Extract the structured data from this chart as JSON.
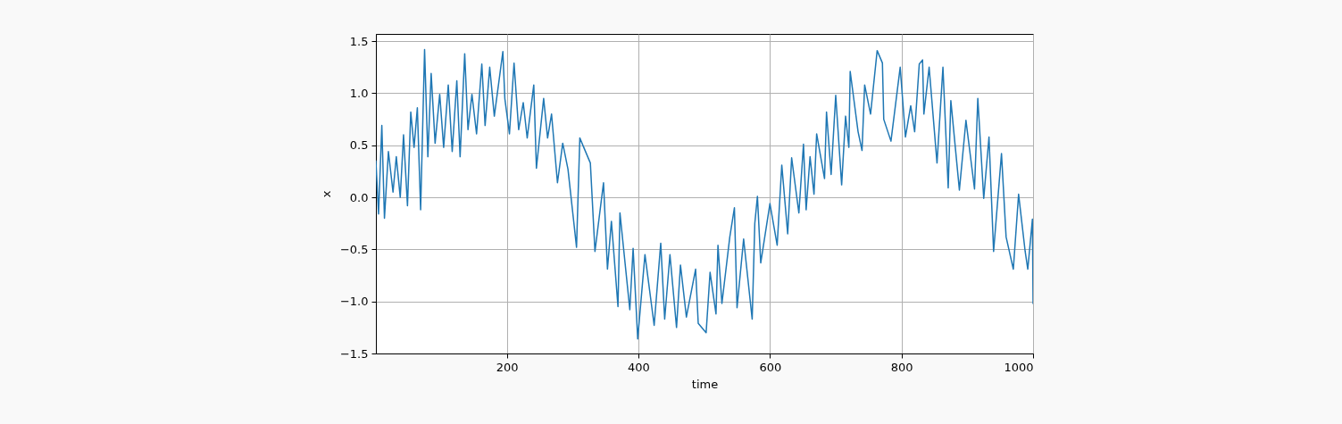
{
  "chart_data": {
    "type": "line",
    "xlabel": "time",
    "ylabel": "x",
    "xlim": [
      1,
      1000
    ],
    "ylim": [
      -1.5,
      1.57
    ],
    "xticks": [
      200,
      400,
      600,
      800,
      1000
    ],
    "yticks": [
      {
        "value": -1.5,
        "label": "−1.5"
      },
      {
        "value": -1,
        "label": "−1.0"
      },
      {
        "value": -0.5,
        "label": "−0.5"
      },
      {
        "value": 0,
        "label": "0.0"
      },
      {
        "value": 0.5,
        "label": "0.5"
      },
      {
        "value": 1,
        "label": "1.0"
      },
      {
        "value": 1.5,
        "label": "1.5"
      }
    ],
    "grid": true,
    "marker": "none",
    "line_style": "solid",
    "series": [
      {
        "color": "#1f77b4",
        "x": [
          1,
          5,
          10,
          14,
          20,
          27,
          32,
          38,
          43,
          49,
          54,
          59,
          64,
          69,
          75,
          80,
          85,
          91,
          98,
          104,
          111,
          117,
          124,
          129,
          136,
          141,
          147,
          154,
          162,
          167,
          174,
          181,
          194,
          197,
          204,
          211,
          218,
          225,
          231,
          241,
          245,
          256,
          262,
          268,
          277,
          285,
          293,
          306,
          311,
          327,
          334,
          347,
          353,
          359,
          369,
          372,
          387,
          392,
          399,
          410,
          424,
          434,
          440,
          448,
          458,
          464,
          473,
          487,
          491,
          503,
          509,
          518,
          521,
          527,
          539,
          546,
          550,
          560,
          573,
          577,
          581,
          586,
          600,
          611,
          618,
          627,
          633,
          644,
          651,
          655,
          661,
          667,
          671,
          683,
          686,
          693,
          700,
          709,
          715,
          720,
          722,
          734,
          740,
          744,
          753,
          763,
          771,
          773,
          784,
          798,
          806,
          814,
          820,
          827,
          832,
          834,
          842,
          854,
          863,
          871,
          875,
          888,
          898,
          911,
          916,
          925,
          933,
          940,
          952,
          959,
          970,
          978,
          988,
          992,
          999,
          1000
        ],
        "values": [
          0.35,
          -0.16,
          0.69,
          -0.2,
          0.44,
          0.05,
          0.39,
          0.0,
          0.6,
          -0.08,
          0.82,
          0.48,
          0.86,
          -0.12,
          1.42,
          0.39,
          1.19,
          0.52,
          0.99,
          0.48,
          1.08,
          0.44,
          1.12,
          0.39,
          1.38,
          0.65,
          0.99,
          0.61,
          1.28,
          0.69,
          1.25,
          0.78,
          1.4,
          0.95,
          0.61,
          1.29,
          0.65,
          0.91,
          0.57,
          1.08,
          0.28,
          0.95,
          0.57,
          0.8,
          0.14,
          0.52,
          0.27,
          -0.48,
          0.57,
          0.33,
          -0.52,
          0.14,
          -0.69,
          -0.23,
          -1.05,
          -0.15,
          -1.08,
          -0.49,
          -1.36,
          -0.55,
          -1.23,
          -0.44,
          -1.17,
          -0.55,
          -1.25,
          -0.65,
          -1.15,
          -0.69,
          -1.21,
          -1.3,
          -0.72,
          -1.12,
          -0.46,
          -1.02,
          -0.38,
          -0.1,
          -1.06,
          -0.4,
          -1.17,
          -0.25,
          0.01,
          -0.63,
          -0.06,
          -0.46,
          0.31,
          -0.35,
          0.38,
          -0.15,
          0.51,
          -0.12,
          0.39,
          0.03,
          0.61,
          0.18,
          0.82,
          0.22,
          0.98,
          0.12,
          0.78,
          0.48,
          1.21,
          0.63,
          0.45,
          1.08,
          0.8,
          1.41,
          1.29,
          0.75,
          0.54,
          1.25,
          0.58,
          0.88,
          0.63,
          1.28,
          1.32,
          0.8,
          1.25,
          0.33,
          1.25,
          0.09,
          0.93,
          0.07,
          0.74,
          0.08,
          0.95,
          -0.01,
          0.58,
          -0.52,
          0.42,
          -0.38,
          -0.69,
          0.03,
          -0.52,
          -0.69,
          -0.21,
          -1.02
        ]
      }
    ]
  }
}
